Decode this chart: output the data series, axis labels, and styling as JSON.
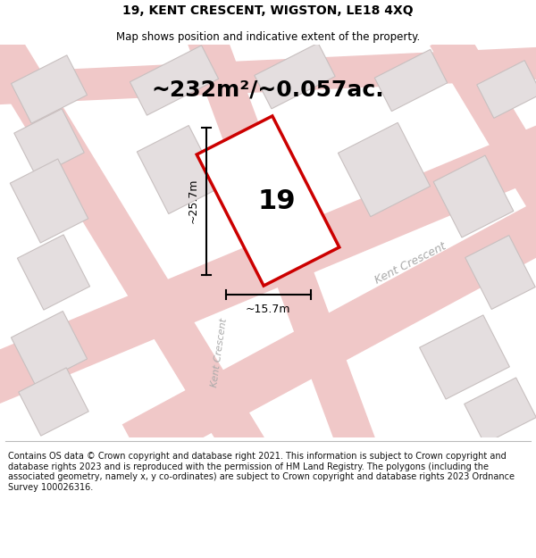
{
  "title": "19, KENT CRESCENT, WIGSTON, LE18 4XQ",
  "subtitle": "Map shows position and indicative extent of the property.",
  "area_text": "~232m²/~0.057ac.",
  "label_number": "19",
  "dim_width": "~15.7m",
  "dim_height": "~25.7m",
  "street_label1": "Kent Crescent",
  "street_label2": "Kent Crescent",
  "footer": "Contains OS data © Crown copyright and database right 2021. This information is subject to Crown copyright and database rights 2023 and is reproduced with the permission of HM Land Registry. The polygons (including the associated geometry, namely x, y co-ordinates) are subject to Crown copyright and database rights 2023 Ordnance Survey 100026316.",
  "bg_color": "#f5f0f0",
  "map_bg": "#f2eeee",
  "building_fill": "#e4dedf",
  "building_edge": "#c8c0c0",
  "road_color": "#f0c8c8",
  "highlight_fill": "#ffffff",
  "highlight_edge": "#cc0000",
  "dim_color": "#000000",
  "text_color": "#000000",
  "street_color": "#aaaaaa",
  "title_fontsize": 10,
  "subtitle_fontsize": 8.5,
  "area_fontsize": 18,
  "label_fontsize": 22,
  "dim_fontsize": 9,
  "street_fontsize": 9,
  "footer_fontsize": 7
}
